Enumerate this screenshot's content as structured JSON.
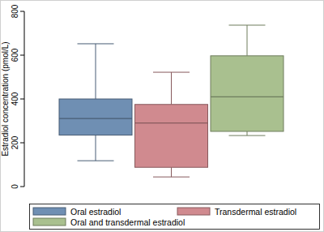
{
  "chart_data": {
    "type": "box",
    "y_label": "Estradiol concentration (pmol/L)",
    "ylim": [
      0,
      800
    ],
    "yticks": [
      0,
      200,
      400,
      600,
      800
    ],
    "grid": false,
    "legend": "bottom",
    "series": [
      {
        "name": "Oral estradiol",
        "color": "#6f8fb3",
        "whisker_low": 118,
        "q1": 235,
        "median": 311,
        "q3": 400,
        "whisker_high": 652
      },
      {
        "name": "Transdermal estradiol",
        "color": "#d08a8f",
        "whisker_low": 44,
        "q1": 88,
        "median": 290,
        "q3": 375,
        "whisker_high": 522
      },
      {
        "name": "Oral and transdermal estradiol",
        "color": "#a9c08f",
        "whisker_low": 233,
        "q1": 252,
        "median": 410,
        "q3": 597,
        "whisker_high": 737
      }
    ]
  }
}
